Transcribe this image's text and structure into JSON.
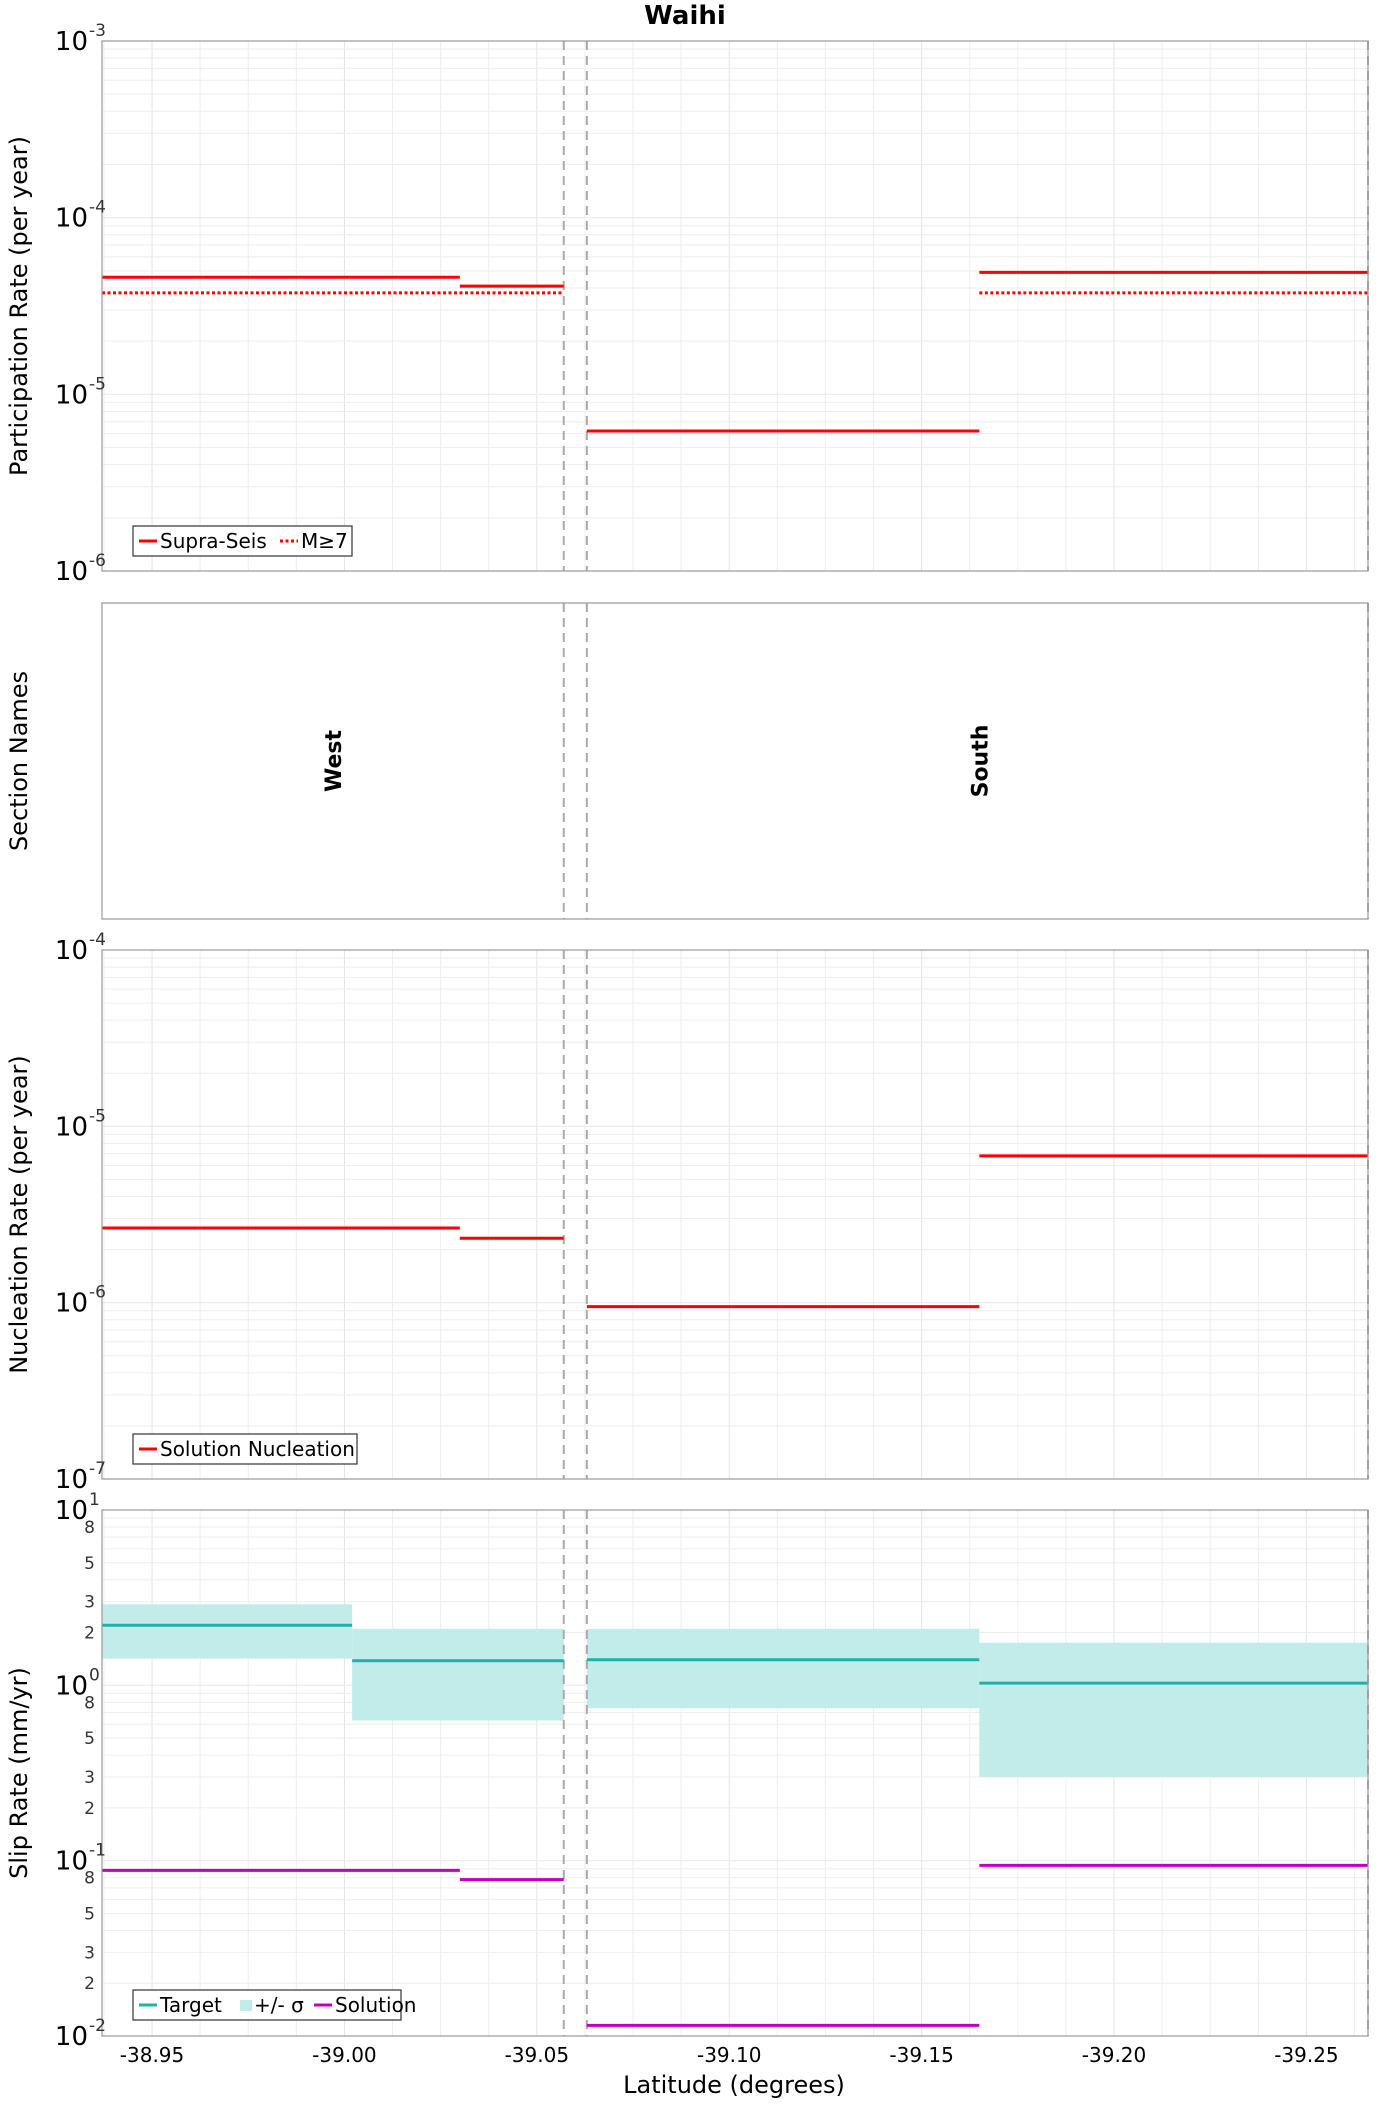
{
  "chart_data": [
    {
      "id": "participation",
      "type": "line",
      "title": "Waihi",
      "ylabel": "Participation Rate (per year)",
      "yscale": "log",
      "ylim": [
        1e-06,
        0.001
      ],
      "xlim": [
        -38.937,
        -39.266
      ],
      "grid": true,
      "legend_position": "bottom-left",
      "y_ticks": [
        {
          "exp": 0,
          "base": "10",
          "power": "-6"
        },
        {
          "exp": 1,
          "base": "10",
          "power": "-5"
        },
        {
          "exp": 2,
          "base": "10",
          "power": "-4"
        },
        {
          "exp": 3,
          "base": "10",
          "power": "-3"
        }
      ],
      "legend": [
        "Supra-Seis",
        "M≥7"
      ],
      "series": [
        {
          "name": "Supra-Seis",
          "color": "#ff0000",
          "style": "solid",
          "segments": [
            {
              "x0": -38.937,
              "x1": -39.03,
              "y": 4.6e-05
            },
            {
              "x0": -39.03,
              "x1": -39.057,
              "y": 4.1e-05
            },
            {
              "x0": -39.063,
              "x1": -39.165,
              "y": 6.2e-06
            },
            {
              "x0": -39.165,
              "x1": -39.266,
              "y": 4.9e-05
            }
          ]
        },
        {
          "name": "M≥7",
          "color": "#ff0000",
          "style": "dotted",
          "segments": [
            {
              "x0": -38.937,
              "x1": -39.057,
              "y": 3.75e-05
            },
            {
              "x0": -39.165,
              "x1": -39.266,
              "y": 3.75e-05
            }
          ]
        }
      ]
    },
    {
      "id": "sections",
      "type": "table",
      "ylabel": "Section Names",
      "sections": [
        {
          "name": "West",
          "x": -38.997
        },
        {
          "name": "South",
          "x": -39.165
        }
      ]
    },
    {
      "id": "nucleation",
      "type": "line",
      "ylabel": "Nucleation Rate (per year)",
      "yscale": "log",
      "ylim": [
        1e-07,
        0.0001
      ],
      "xlim": [
        -38.937,
        -39.266
      ],
      "grid": true,
      "legend_position": "bottom-left",
      "y_ticks": [
        {
          "exp": 0,
          "base": "10",
          "power": "-7"
        },
        {
          "exp": 1,
          "base": "10",
          "power": "-6"
        },
        {
          "exp": 2,
          "base": "10",
          "power": "-5"
        },
        {
          "exp": 3,
          "base": "10",
          "power": "-4"
        }
      ],
      "legend": [
        "Solution Nucleation"
      ],
      "series": [
        {
          "name": "Solution Nucleation",
          "color": "#ff0000",
          "style": "solid",
          "segments": [
            {
              "x0": -38.937,
              "x1": -39.03,
              "y": 2.65e-06
            },
            {
              "x0": -39.03,
              "x1": -39.057,
              "y": 2.32e-06
            },
            {
              "x0": -39.063,
              "x1": -39.165,
              "y": 9.5e-07
            },
            {
              "x0": -39.165,
              "x1": -39.266,
              "y": 6.8e-06
            }
          ]
        }
      ]
    },
    {
      "id": "slip",
      "type": "line",
      "ylabel": "Slip Rate (mm/yr)",
      "xlabel": "Latitude (degrees)",
      "yscale": "log",
      "ylim": [
        0.01,
        10
      ],
      "xlim": [
        -38.937,
        -39.266
      ],
      "grid": true,
      "legend_position": "bottom-left",
      "y_ticks": [
        {
          "exp": 0,
          "base": "10",
          "power": "-2"
        },
        {
          "exp": 1,
          "base": "10",
          "power": "-1"
        },
        {
          "exp": 2,
          "base": "10",
          "power": "0"
        },
        {
          "exp": 3,
          "base": "10",
          "power": "1"
        }
      ],
      "minor_tick_labels": [
        "2",
        "3",
        "5",
        "8"
      ],
      "x_ticks": [
        "-38.95",
        "-39.00",
        "-39.05",
        "-39.10",
        "-39.15",
        "-39.20",
        "-39.25"
      ],
      "x_tick_values": [
        -38.95,
        -39.0,
        -39.05,
        -39.1,
        -39.15,
        -39.2,
        -39.25
      ],
      "legend": [
        "Target",
        "+/- σ",
        "Solution"
      ],
      "bands": [
        {
          "name": "+/- σ",
          "color": "#c2ece9",
          "segments": [
            {
              "x0": -38.937,
              "x1": -39.002,
              "low": 1.42,
              "high": 2.9
            },
            {
              "x0": -39.002,
              "x1": -39.057,
              "low": 0.63,
              "high": 2.1
            },
            {
              "x0": -39.063,
              "x1": -39.165,
              "low": 0.74,
              "high": 2.1
            },
            {
              "x0": -39.165,
              "x1": -39.266,
              "low": 0.3,
              "high": 1.75
            }
          ]
        }
      ],
      "series": [
        {
          "name": "Target",
          "color": "#20b2aa",
          "style": "solid",
          "segments": [
            {
              "x0": -38.937,
              "x1": -39.002,
              "y": 2.2
            },
            {
              "x0": -39.002,
              "x1": -39.057,
              "y": 1.38
            },
            {
              "x0": -39.063,
              "x1": -39.165,
              "y": 1.4
            },
            {
              "x0": -39.165,
              "x1": -39.266,
              "y": 1.03
            }
          ]
        },
        {
          "name": "Solution",
          "color": "#c000c0",
          "style": "solid",
          "segments": [
            {
              "x0": -38.937,
              "x1": -39.03,
              "y": 0.088
            },
            {
              "x0": -39.03,
              "x1": -39.057,
              "y": 0.078
            },
            {
              "x0": -39.063,
              "x1": -39.165,
              "y": 0.0115
            },
            {
              "x0": -39.165,
              "x1": -39.266,
              "y": 0.094
            }
          ]
        }
      ]
    }
  ],
  "boundaries_x": [
    -39.057,
    -39.063,
    -39.266
  ]
}
